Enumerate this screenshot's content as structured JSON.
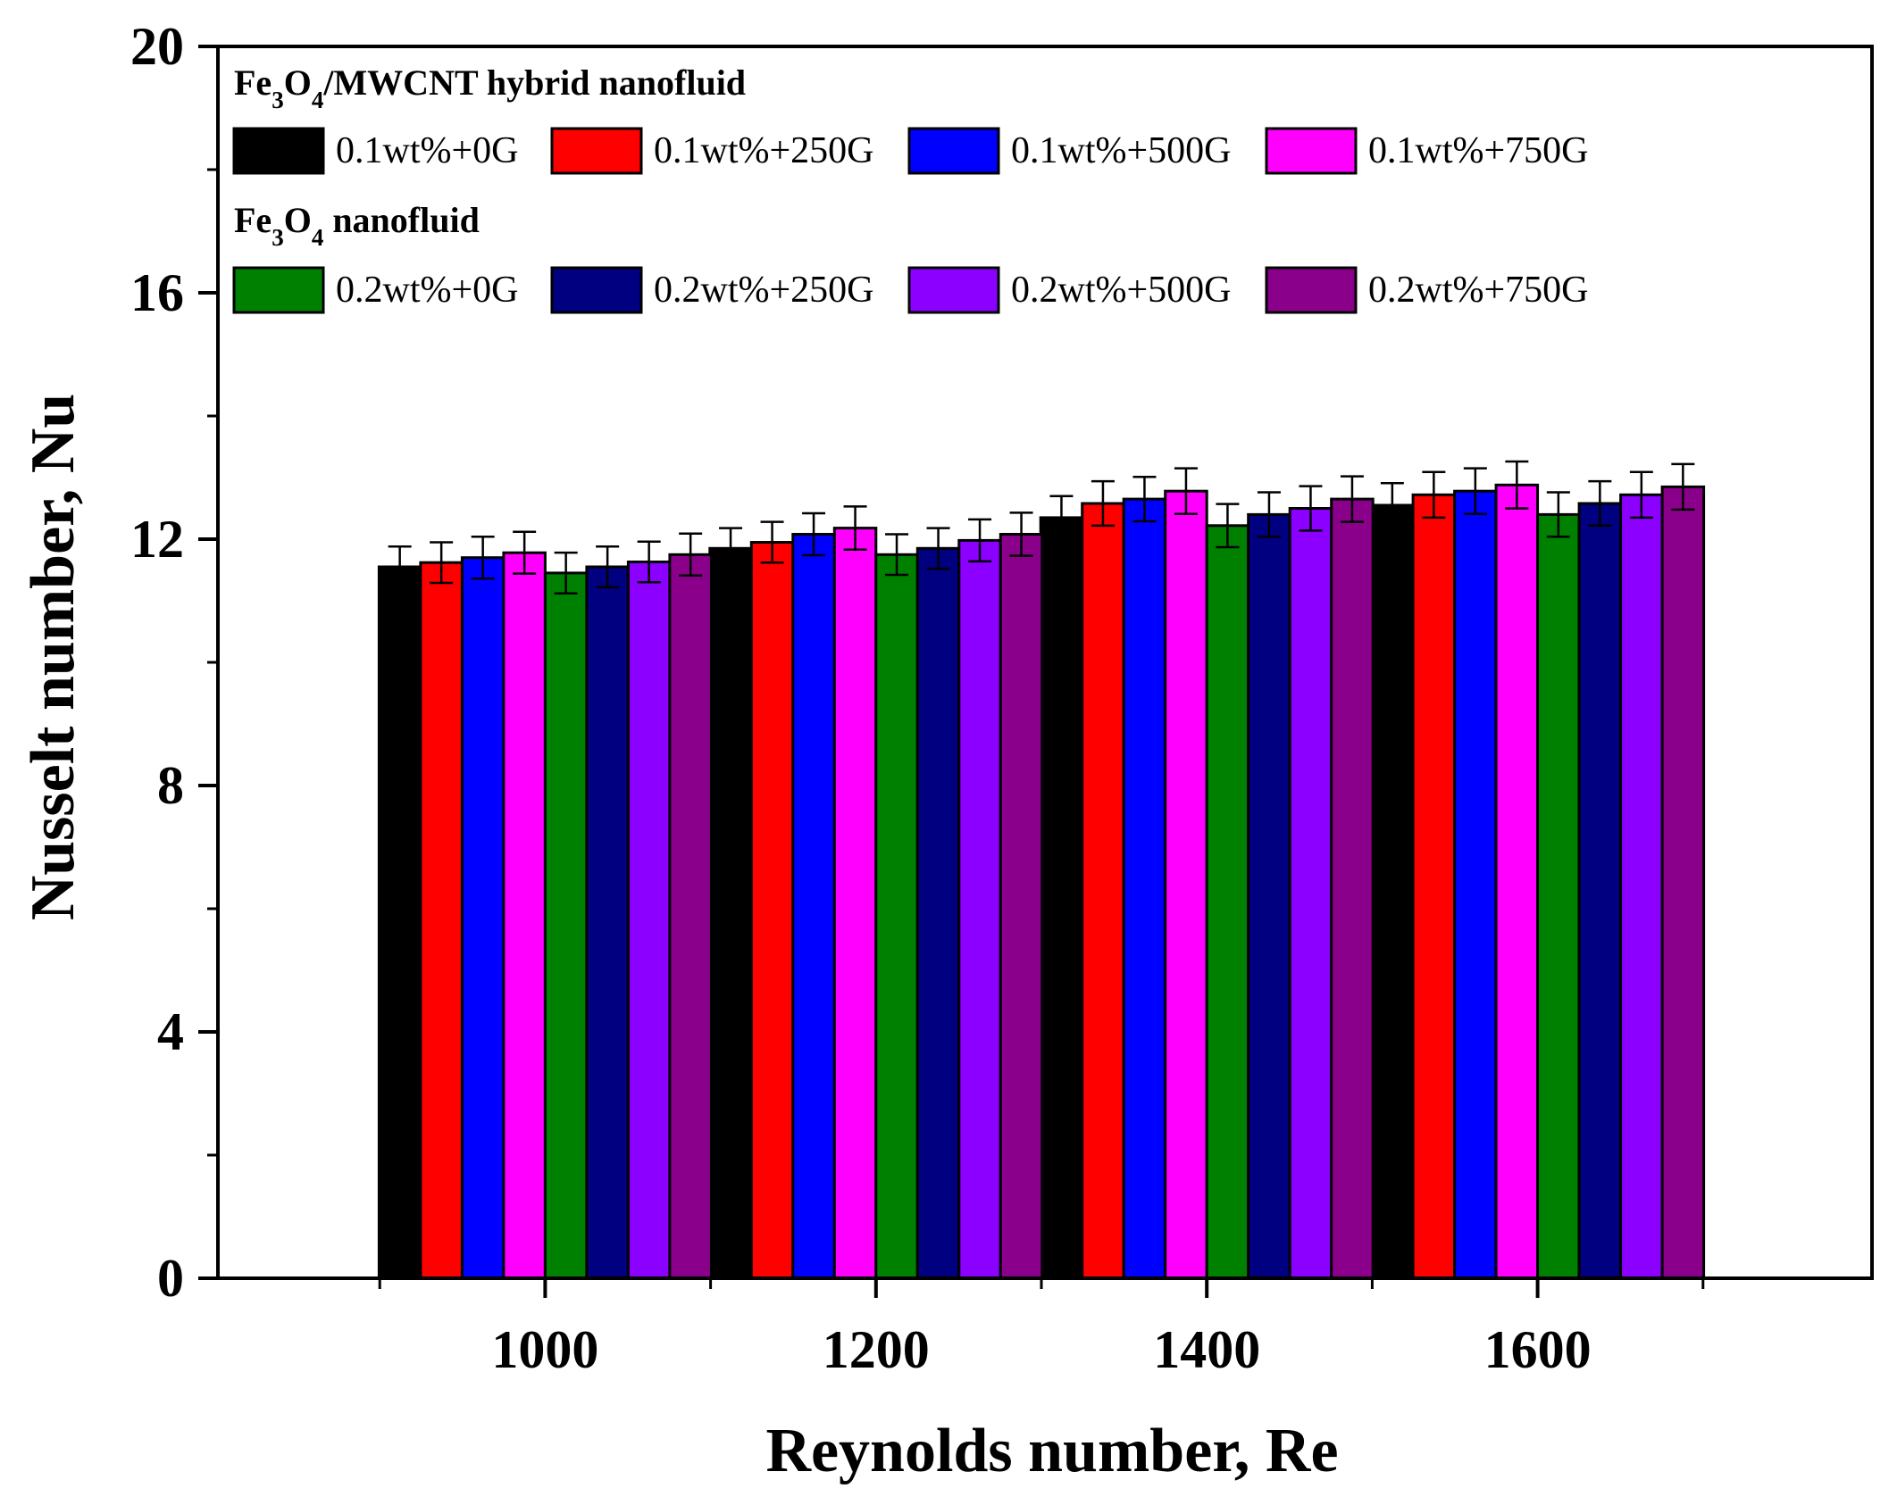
{
  "chart_data": {
    "type": "bar",
    "xlabel": "Reynolds number, Re",
    "ylabel": "Nusselt number, Nu",
    "categories": [
      "1000",
      "1200",
      "1400",
      "1600"
    ],
    "ylim": [
      0,
      20
    ],
    "yticks": [
      "0",
      "4",
      "8",
      "12",
      "16",
      "20"
    ],
    "grid": false,
    "legend_position": "top-left",
    "legend_groups": [
      {
        "title_parts": [
          {
            "text": "Fe",
            "sub": false
          },
          {
            "text": "3",
            "sub": true
          },
          {
            "text": "O",
            "sub": false
          },
          {
            "text": "4",
            "sub": true
          },
          {
            "text": "/MWCNT hybrid nanofluid",
            "sub": false
          }
        ],
        "series_indices": [
          0,
          1,
          2,
          3
        ]
      },
      {
        "title_parts": [
          {
            "text": "Fe",
            "sub": false
          },
          {
            "text": "3",
            "sub": true
          },
          {
            "text": "O",
            "sub": false
          },
          {
            "text": "4",
            "sub": true
          },
          {
            "text": " nanofluid",
            "sub": false
          }
        ],
        "series_indices": [
          4,
          5,
          6,
          7
        ]
      }
    ],
    "series": [
      {
        "name": "0.1wt%+0G",
        "color": "#000000",
        "values": [
          11.55,
          11.85,
          12.35,
          12.55
        ],
        "error": [
          0.33,
          0.33,
          0.35,
          0.36
        ]
      },
      {
        "name": "0.1wt%+250G",
        "color": "#ff0000",
        "values": [
          11.62,
          11.95,
          12.58,
          12.72
        ],
        "error": [
          0.33,
          0.33,
          0.36,
          0.37
        ]
      },
      {
        "name": "0.1wt%+500G",
        "color": "#0000ff",
        "values": [
          11.7,
          12.08,
          12.65,
          12.78
        ],
        "error": [
          0.34,
          0.34,
          0.36,
          0.37
        ]
      },
      {
        "name": "0.1wt%+750G",
        "color": "#ff00ff",
        "values": [
          11.78,
          12.18,
          12.78,
          12.88
        ],
        "error": [
          0.34,
          0.35,
          0.37,
          0.38
        ]
      },
      {
        "name": "0.2wt%+0G",
        "color": "#008000",
        "values": [
          11.45,
          11.75,
          12.22,
          12.4
        ],
        "error": [
          0.33,
          0.33,
          0.35,
          0.36
        ]
      },
      {
        "name": "0.2wt%+250G",
        "color": "#000080",
        "values": [
          11.55,
          11.85,
          12.4,
          12.58
        ],
        "error": [
          0.33,
          0.33,
          0.36,
          0.36
        ]
      },
      {
        "name": "0.2wt%+500G",
        "color": "#8b00ff",
        "values": [
          11.63,
          11.98,
          12.5,
          12.72
        ],
        "error": [
          0.33,
          0.34,
          0.36,
          0.37
        ]
      },
      {
        "name": "0.2wt%+750G",
        "color": "#8b008b",
        "values": [
          11.75,
          12.08,
          12.65,
          12.85
        ],
        "error": [
          0.34,
          0.35,
          0.37,
          0.37
        ]
      }
    ]
  }
}
